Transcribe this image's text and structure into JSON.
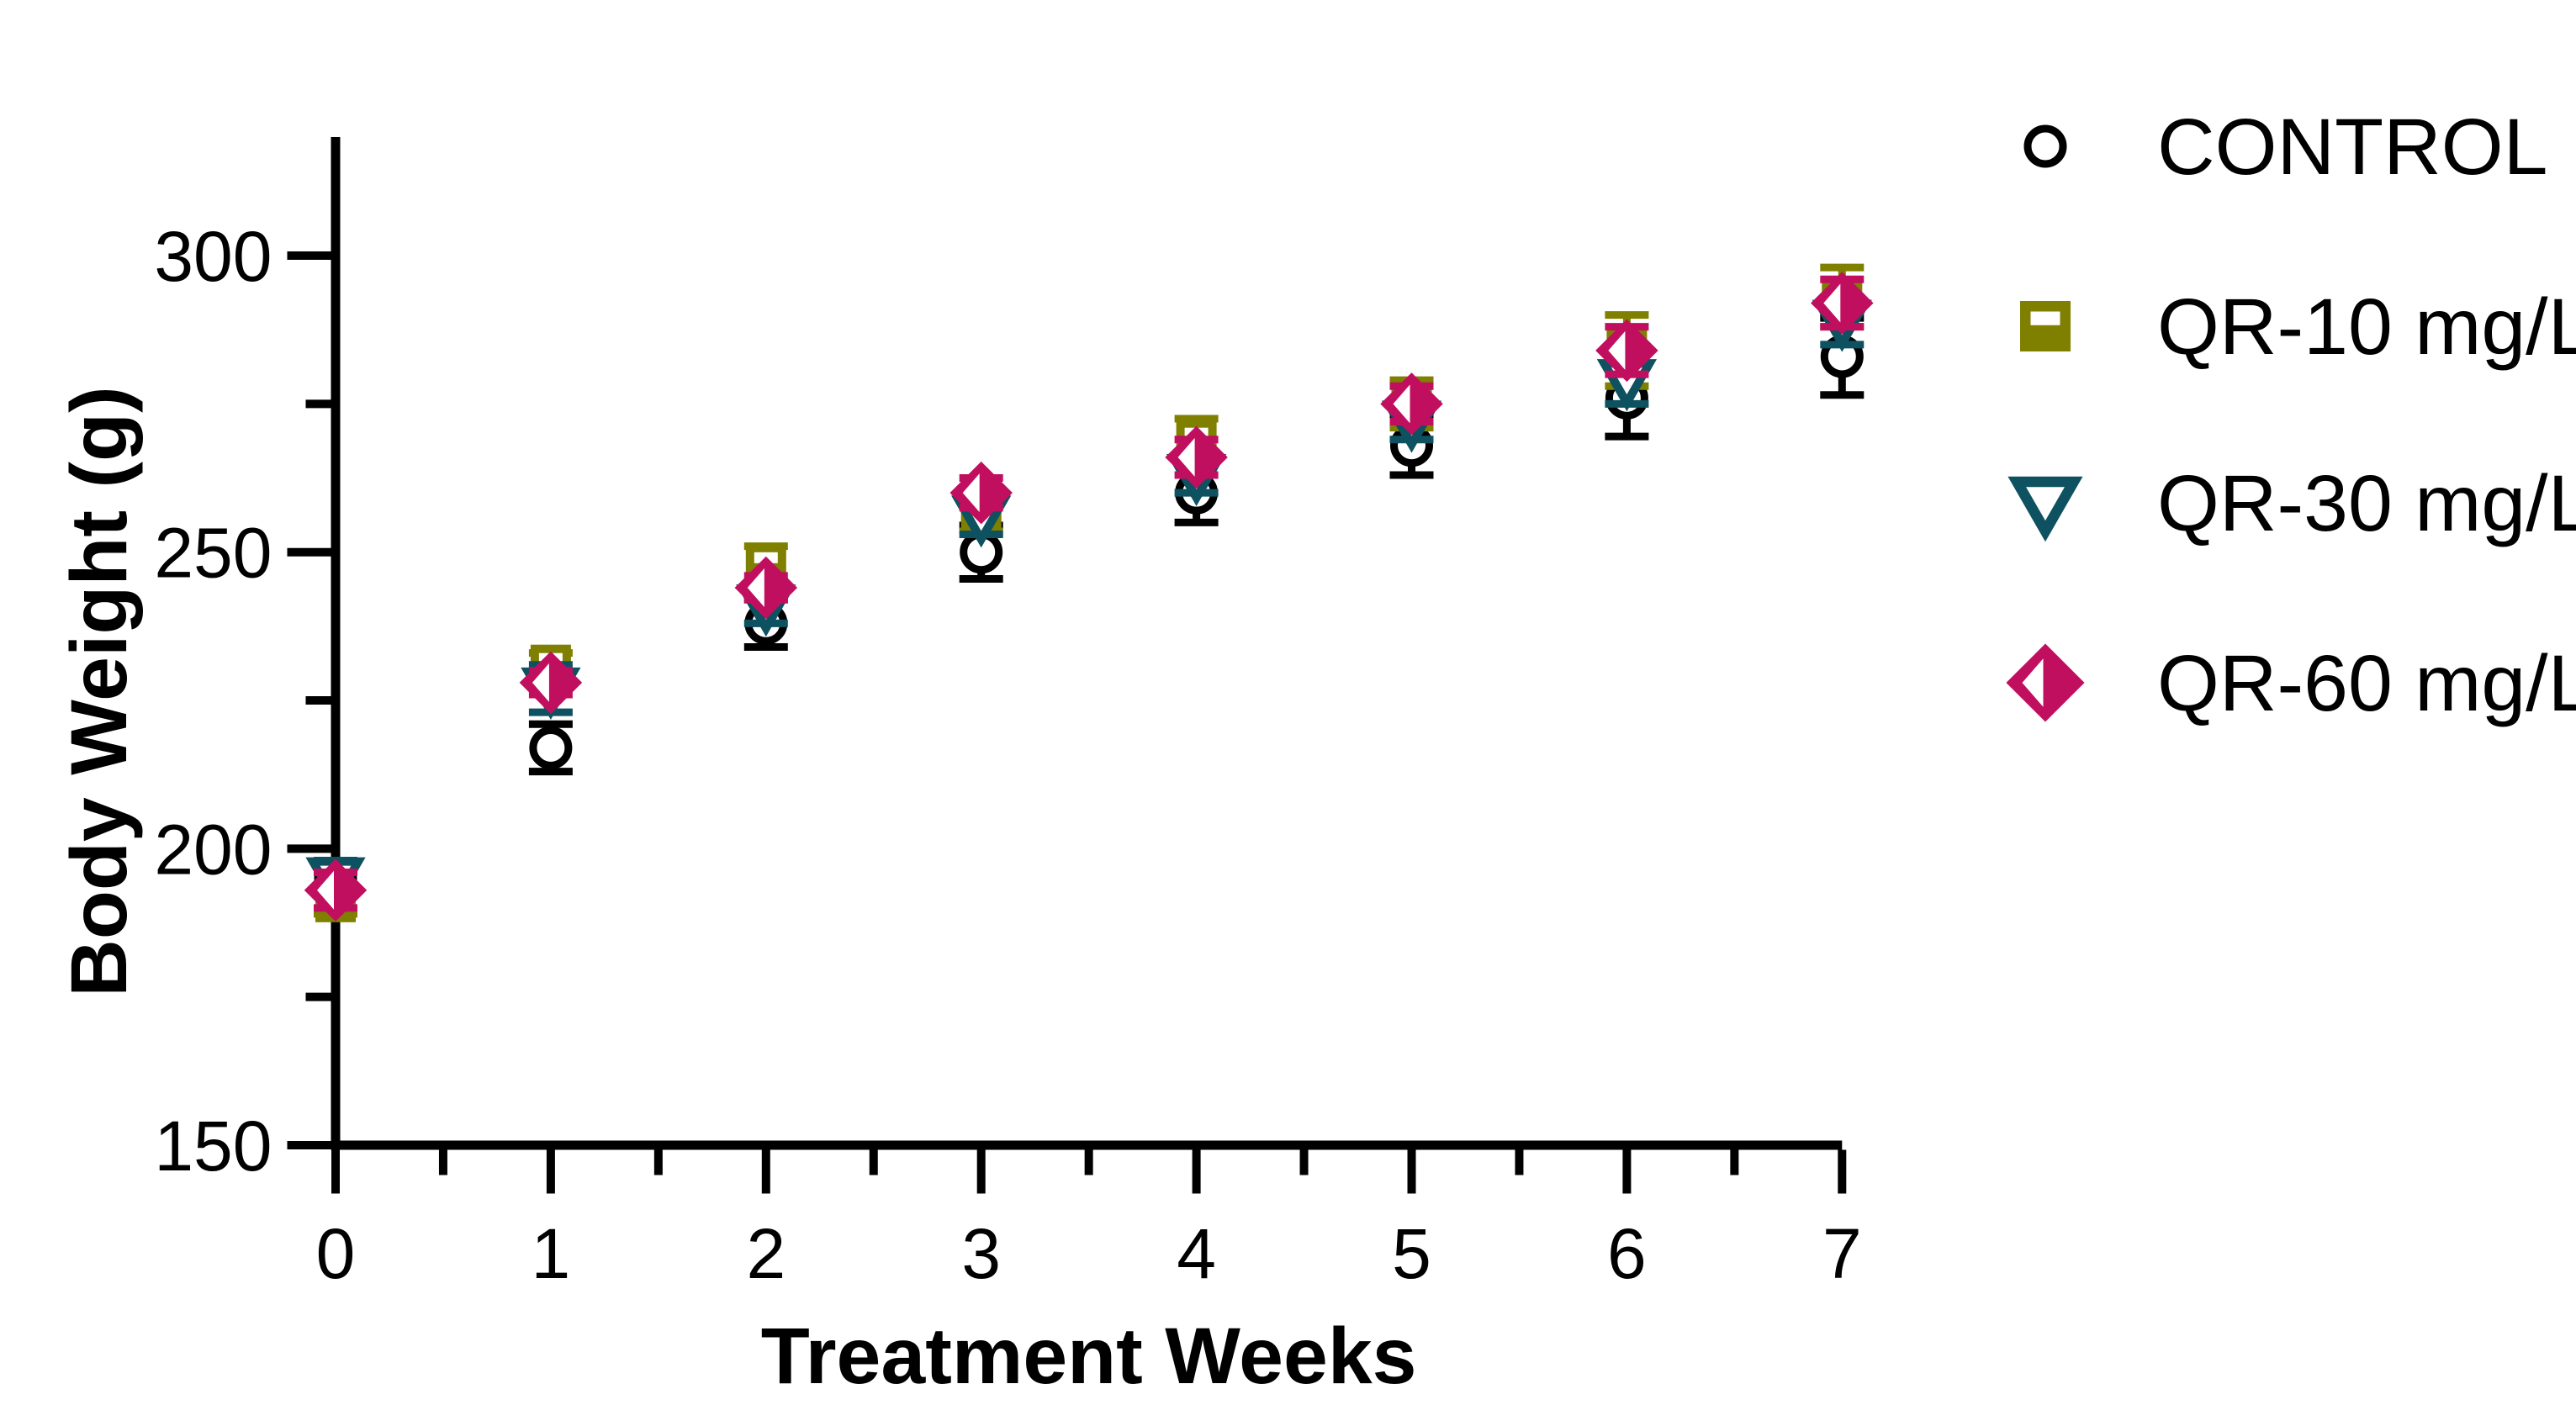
{
  "chart_data": {
    "type": "scatter",
    "title": "",
    "xlabel": "Treatment Weeks",
    "ylabel": "Body Weight (g)",
    "x": [
      0,
      1,
      2,
      3,
      4,
      5,
      6,
      7
    ],
    "xlim": [
      0,
      7
    ],
    "ylim": [
      150,
      320
    ],
    "x_major_ticks": [
      0,
      1,
      2,
      3,
      4,
      5,
      6,
      7
    ],
    "x_minor_ticks": [
      0.5,
      1.5,
      2.5,
      3.5,
      4.5,
      5.5,
      6.5
    ],
    "y_major_ticks": [
      150,
      200,
      250,
      300
    ],
    "y_minor_ticks": [
      175,
      225,
      275
    ],
    "grid": false,
    "legend_position": "top-right",
    "axis_color": "#000000",
    "series": [
      {
        "name": "CONTROL",
        "marker": "open-circle",
        "color": "#000000",
        "values": [
          195,
          217,
          238,
          250,
          260,
          268,
          276,
          283
        ],
        "errors": [
          2,
          4,
          4,
          4.5,
          5,
          5,
          6.5,
          6.5
        ]
      },
      {
        "name": "QR-10 mg/L",
        "marker": "half-filled-square",
        "color": "#7F7F00",
        "values": [
          191,
          231,
          248,
          256,
          269,
          275,
          284,
          293
        ],
        "errors": [
          2,
          2,
          3,
          2.5,
          3.5,
          4,
          6,
          5
        ]
      },
      {
        "name": "QR-30 mg/L",
        "marker": "open-triangle-down",
        "color": "#0E5160",
        "values": [
          195,
          227,
          241,
          256,
          263,
          272,
          279,
          289
        ],
        "errors": [
          3,
          4,
          3,
          3,
          3,
          3,
          4,
          4
        ]
      },
      {
        "name": "QR-60 mg/L",
        "marker": "half-filled-diamond",
        "color": "#C10F5F",
        "values": [
          193,
          228,
          244,
          260,
          266,
          275,
          284,
          292
        ],
        "errors": [
          3,
          2,
          2,
          2.5,
          3,
          3,
          4,
          4
        ]
      }
    ]
  }
}
